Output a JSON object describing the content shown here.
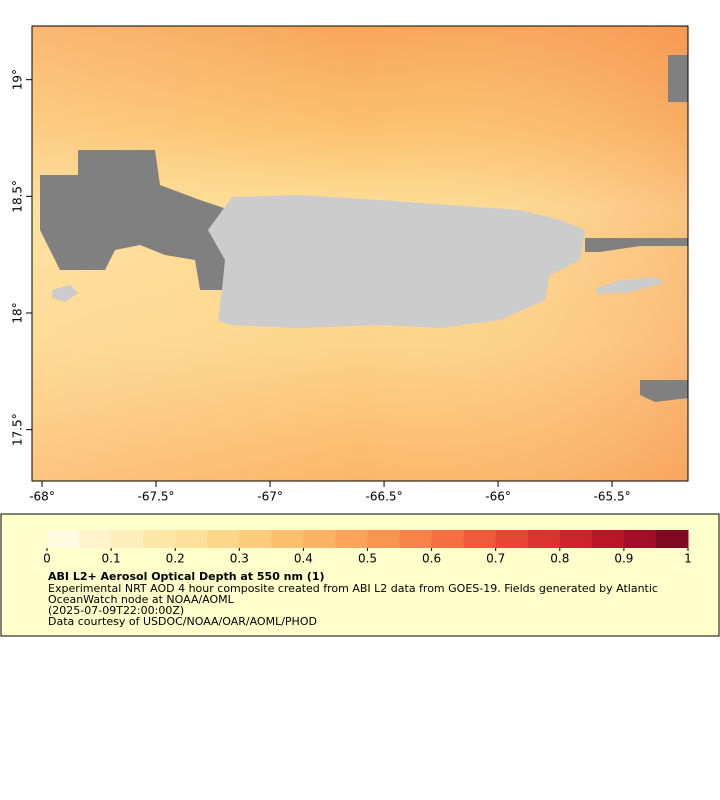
{
  "map": {
    "xlim": [
      -68.044,
      -65.167
    ],
    "ylim": [
      17.28,
      19.23
    ],
    "xticks": [
      {
        "value": -68,
        "label": "-68°"
      },
      {
        "value": -67.5,
        "label": "-67.5°"
      },
      {
        "value": -67,
        "label": "-67°"
      },
      {
        "value": -66.5,
        "label": "-66.5°"
      },
      {
        "value": -66,
        "label": "-66°"
      },
      {
        "value": -65.5,
        "label": "-65.5°"
      }
    ],
    "yticks": [
      {
        "value": 17.5,
        "label": "17.5°"
      },
      {
        "value": 18,
        "label": "18°"
      },
      {
        "value": 18.5,
        "label": "18.5°"
      },
      {
        "value": 19,
        "label": "19°"
      }
    ]
  },
  "colorbar": {
    "lim": [
      0,
      1
    ],
    "ticks": [
      0,
      0.1,
      0.2,
      0.3,
      0.4,
      0.5,
      0.6,
      0.7,
      0.8,
      0.9,
      1
    ],
    "colors": [
      "#fffbe0",
      "#fff4cc",
      "#feeebb",
      "#fde7a8",
      "#fde09a",
      "#fdd68a",
      "#fccb7b",
      "#fcbf6e",
      "#fbb264",
      "#fba45a",
      "#f99551",
      "#f8834a",
      "#f56f43",
      "#f05a3c",
      "#e84535",
      "#de3230",
      "#ce222c",
      "#ba1529",
      "#a20d27",
      "#800823"
    ],
    "title": "ABI L2+ Aerosol Optical Depth at 550 nm (1)",
    "lines": [
      "Experimental NRT AOD 4 hour composite created from ABI L2 data from GOES-19. Fields generated by Atlantic",
      "OceanWatch node at NOAA/AOML",
      "(2025-07-09T22:00:00Z)",
      "Data courtesy of USDOC/NOAA/OAR/AOML/PHOD"
    ]
  }
}
